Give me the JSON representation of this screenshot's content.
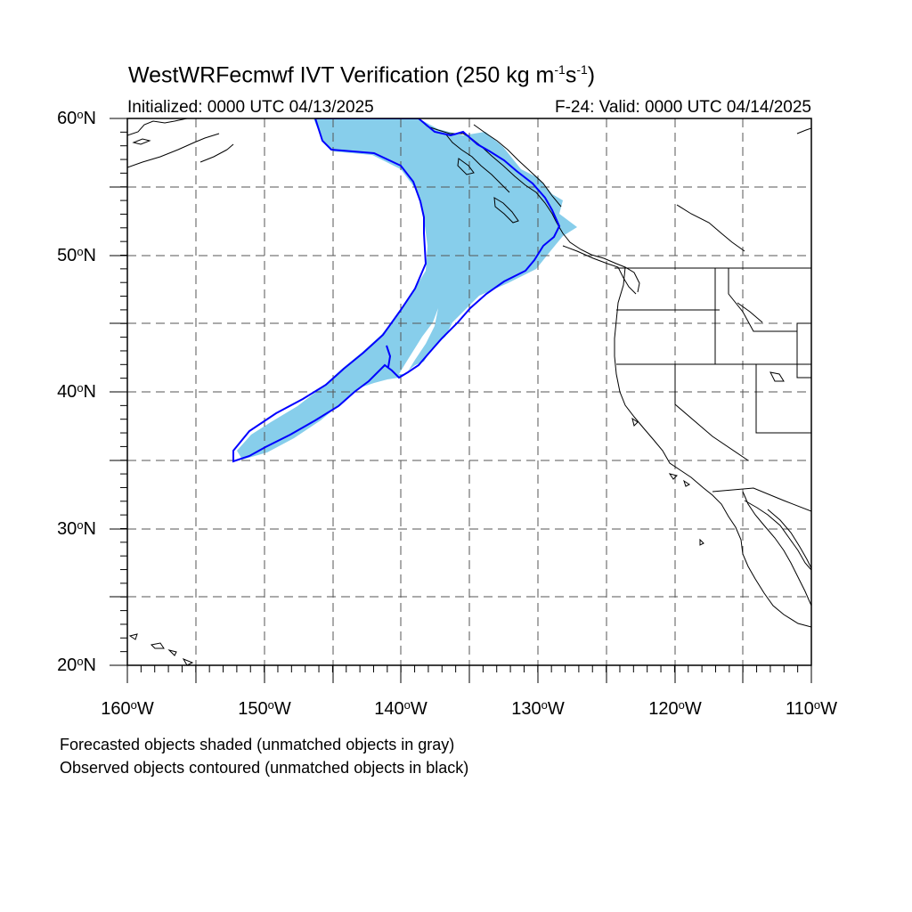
{
  "header": {
    "title_prefix": "WestWRFecmwf IVT Verification (250 kg m",
    "title_exp1": "-1",
    "title_mid": "s",
    "title_exp2": "-1",
    "title_suffix": ")",
    "initialized": "Initialized: 0000 UTC 04/13/2025",
    "valid": "F-24: Valid: 0000 UTC 04/14/2025"
  },
  "map": {
    "projection": "cylindrical equidistant",
    "lon_range": [
      -160,
      -110
    ],
    "lat_range": [
      20,
      60
    ],
    "grid": "dashed every 5 degrees",
    "lat_labels": [
      {
        "value": "60",
        "unit": "o",
        "hemi": "N"
      },
      {
        "value": "50",
        "unit": "o",
        "hemi": "N"
      },
      {
        "value": "40",
        "unit": "o",
        "hemi": "N"
      },
      {
        "value": "30",
        "unit": "o",
        "hemi": "N"
      },
      {
        "value": "20",
        "unit": "o",
        "hemi": "N"
      }
    ],
    "lon_labels": [
      {
        "value": "160",
        "unit": "o",
        "hemi": "W"
      },
      {
        "value": "150",
        "unit": "o",
        "hemi": "W"
      },
      {
        "value": "140",
        "unit": "o",
        "hemi": "W"
      },
      {
        "value": "130",
        "unit": "o",
        "hemi": "W"
      },
      {
        "value": "120",
        "unit": "o",
        "hemi": "W"
      },
      {
        "value": "110",
        "unit": "o",
        "hemi": "W"
      }
    ],
    "colors": {
      "forecast_fill": "#87ceeb",
      "observed_contour": "#0000ff",
      "grid": "#555555",
      "coast": "#000000"
    }
  },
  "legend": {
    "line1": "Forecasted objects shaded (unmatched objects in gray)",
    "line2": "Observed objects contoured (unmatched objects in black)"
  }
}
